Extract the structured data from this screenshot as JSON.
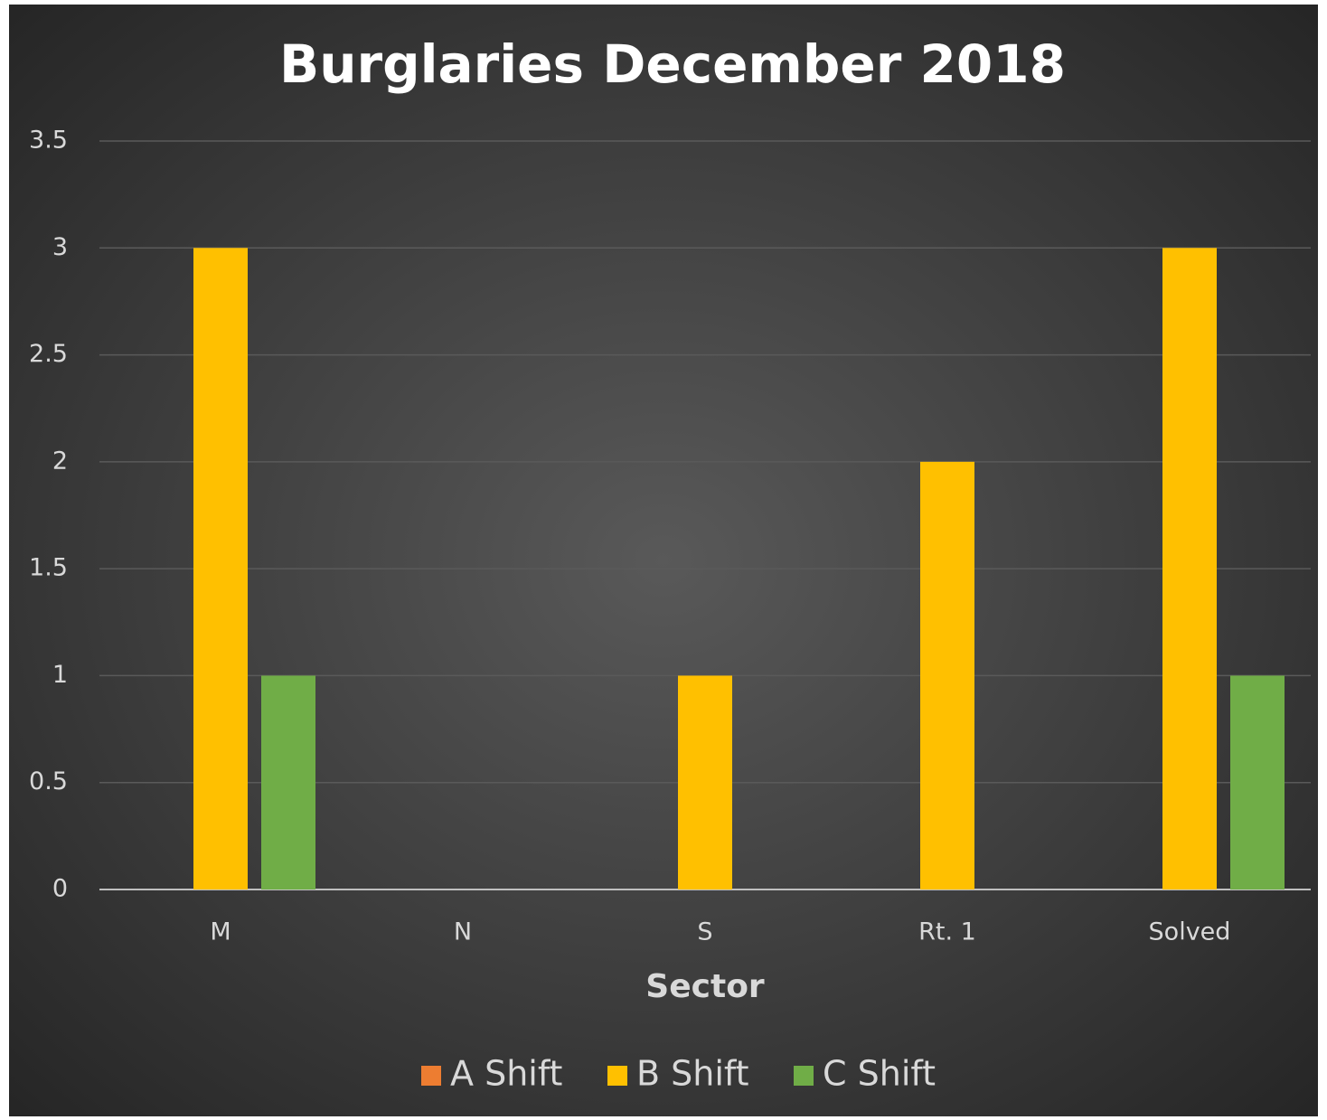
{
  "chart_data": {
    "type": "bar",
    "title": "Burglaries December 2018",
    "x_label": "Sector",
    "categories": [
      "M",
      "N",
      "S",
      "Rt. 1",
      "Solved"
    ],
    "series": [
      {
        "name": "A Shift",
        "color": "#ed7d31",
        "values": [
          0,
          0,
          0,
          0,
          0
        ]
      },
      {
        "name": "B Shift",
        "color": "#ffc000",
        "values": [
          3,
          0,
          1,
          2,
          3
        ]
      },
      {
        "name": "C Shift",
        "color": "#70ad47",
        "values": [
          1,
          0,
          0,
          0,
          1
        ]
      }
    ],
    "ylim": [
      0,
      3.5
    ],
    "yticks": [
      0,
      0.5,
      1,
      1.5,
      2,
      2.5,
      3,
      3.5
    ],
    "grid": true,
    "legend": "bottom"
  }
}
